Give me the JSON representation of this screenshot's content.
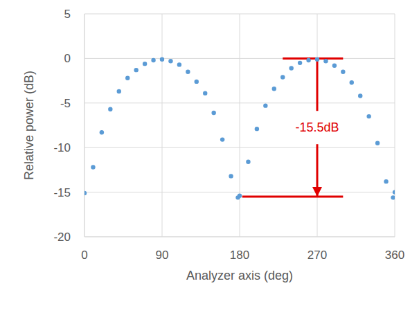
{
  "chart_data": {
    "type": "scatter",
    "x_label": "Analyzer axis (deg)",
    "y_label": "Relative power (dB)",
    "x": [
      0,
      10,
      20,
      30,
      40,
      50,
      60,
      70,
      80,
      90,
      100,
      110,
      120,
      130,
      140,
      150,
      160,
      170,
      178,
      180,
      190,
      200,
      210,
      220,
      230,
      240,
      250,
      260,
      270,
      280,
      290,
      300,
      310,
      320,
      330,
      340,
      350,
      358,
      360
    ],
    "values": [
      -15.1,
      -12.2,
      -8.3,
      -5.7,
      -3.7,
      -2.2,
      -1.3,
      -0.6,
      -0.2,
      -0.1,
      -0.3,
      -0.7,
      -1.5,
      -2.6,
      -3.9,
      -6.1,
      -9.1,
      -13.2,
      -15.6,
      -15.4,
      -11.6,
      -7.9,
      -5.3,
      -3.4,
      -2.1,
      -1.1,
      -0.5,
      -0.2,
      -0.1,
      -0.3,
      -0.8,
      -1.5,
      -2.7,
      -4.2,
      -6.5,
      -9.5,
      -13.8,
      -15.6,
      -15.0
    ],
    "color": "#5b9bd5",
    "marker": "circle",
    "xlim": [
      0,
      360
    ],
    "xticks": [
      0,
      90,
      180,
      270,
      360
    ],
    "ylim": [
      -20,
      5
    ],
    "yticks": [
      -20,
      -15,
      -10,
      -5,
      0,
      5
    ],
    "grid": true,
    "annotation": {
      "text": "-15.5dB",
      "color": "#e00000",
      "x": 270,
      "from": 0,
      "to": -15.5,
      "top_line": [
        230,
        300
      ],
      "bottom_line": [
        183,
        300
      ]
    }
  }
}
